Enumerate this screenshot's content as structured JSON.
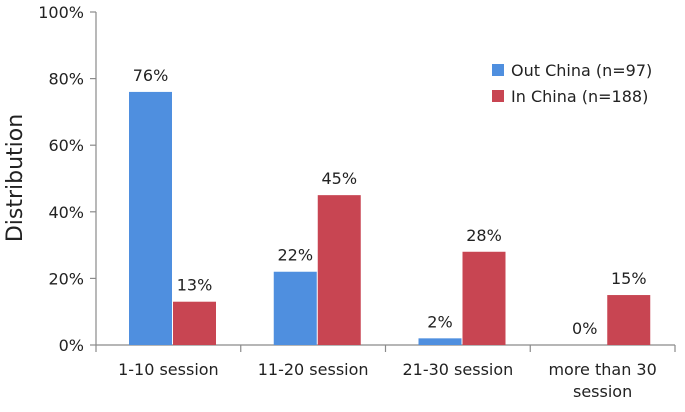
{
  "chart_data": {
    "type": "bar",
    "title": "",
    "xlabel": "",
    "ylabel": "Distribution",
    "ylim": [
      0,
      100
    ],
    "y_ticks": [
      "0%",
      "20%",
      "40%",
      "60%",
      "80%",
      "100%"
    ],
    "y_tick_values": [
      0,
      20,
      40,
      60,
      80,
      100
    ],
    "categories": [
      "1-10 session",
      "11-20 session",
      "21-30 session",
      "more than 30 session"
    ],
    "category_lines": [
      [
        "1-10 session"
      ],
      [
        "11-20 session"
      ],
      [
        "21-30 session"
      ],
      [
        "more than 30",
        "session"
      ]
    ],
    "series": [
      {
        "name": "Out China (n=97)",
        "color": "#4f8fdf",
        "values": [
          76,
          22,
          2,
          0
        ],
        "labels": [
          "76%",
          "22%",
          "2%",
          "0%"
        ]
      },
      {
        "name": "In China (n=188)",
        "color": "#c84552",
        "values": [
          13,
          45,
          28,
          15
        ],
        "labels": [
          "13%",
          "45%",
          "28%",
          "15%"
        ]
      }
    ],
    "grid": false,
    "legend_position": "top-right"
  }
}
